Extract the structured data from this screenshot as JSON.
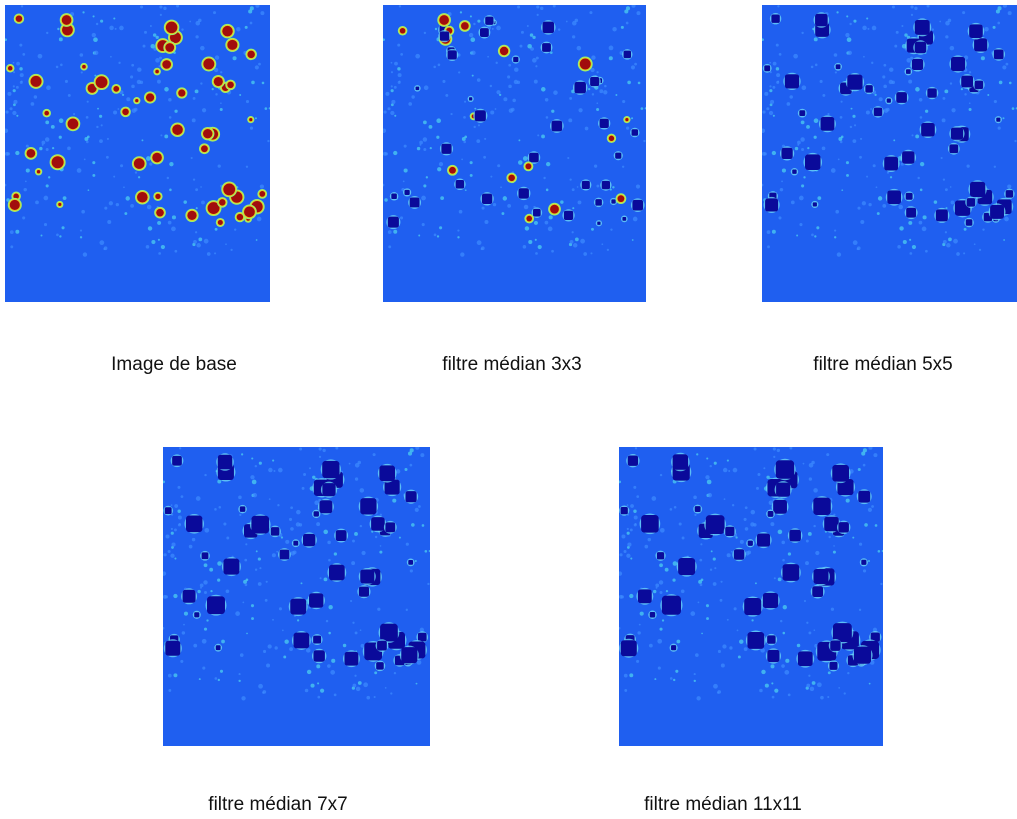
{
  "panels": [
    {
      "caption": "Image de base"
    },
    {
      "caption": "filtre médian 3x3"
    },
    {
      "caption": "filtre médian 5x5"
    },
    {
      "caption": "filtre médian 7x7"
    },
    {
      "caption": "filtre médian 11x11"
    }
  ]
}
